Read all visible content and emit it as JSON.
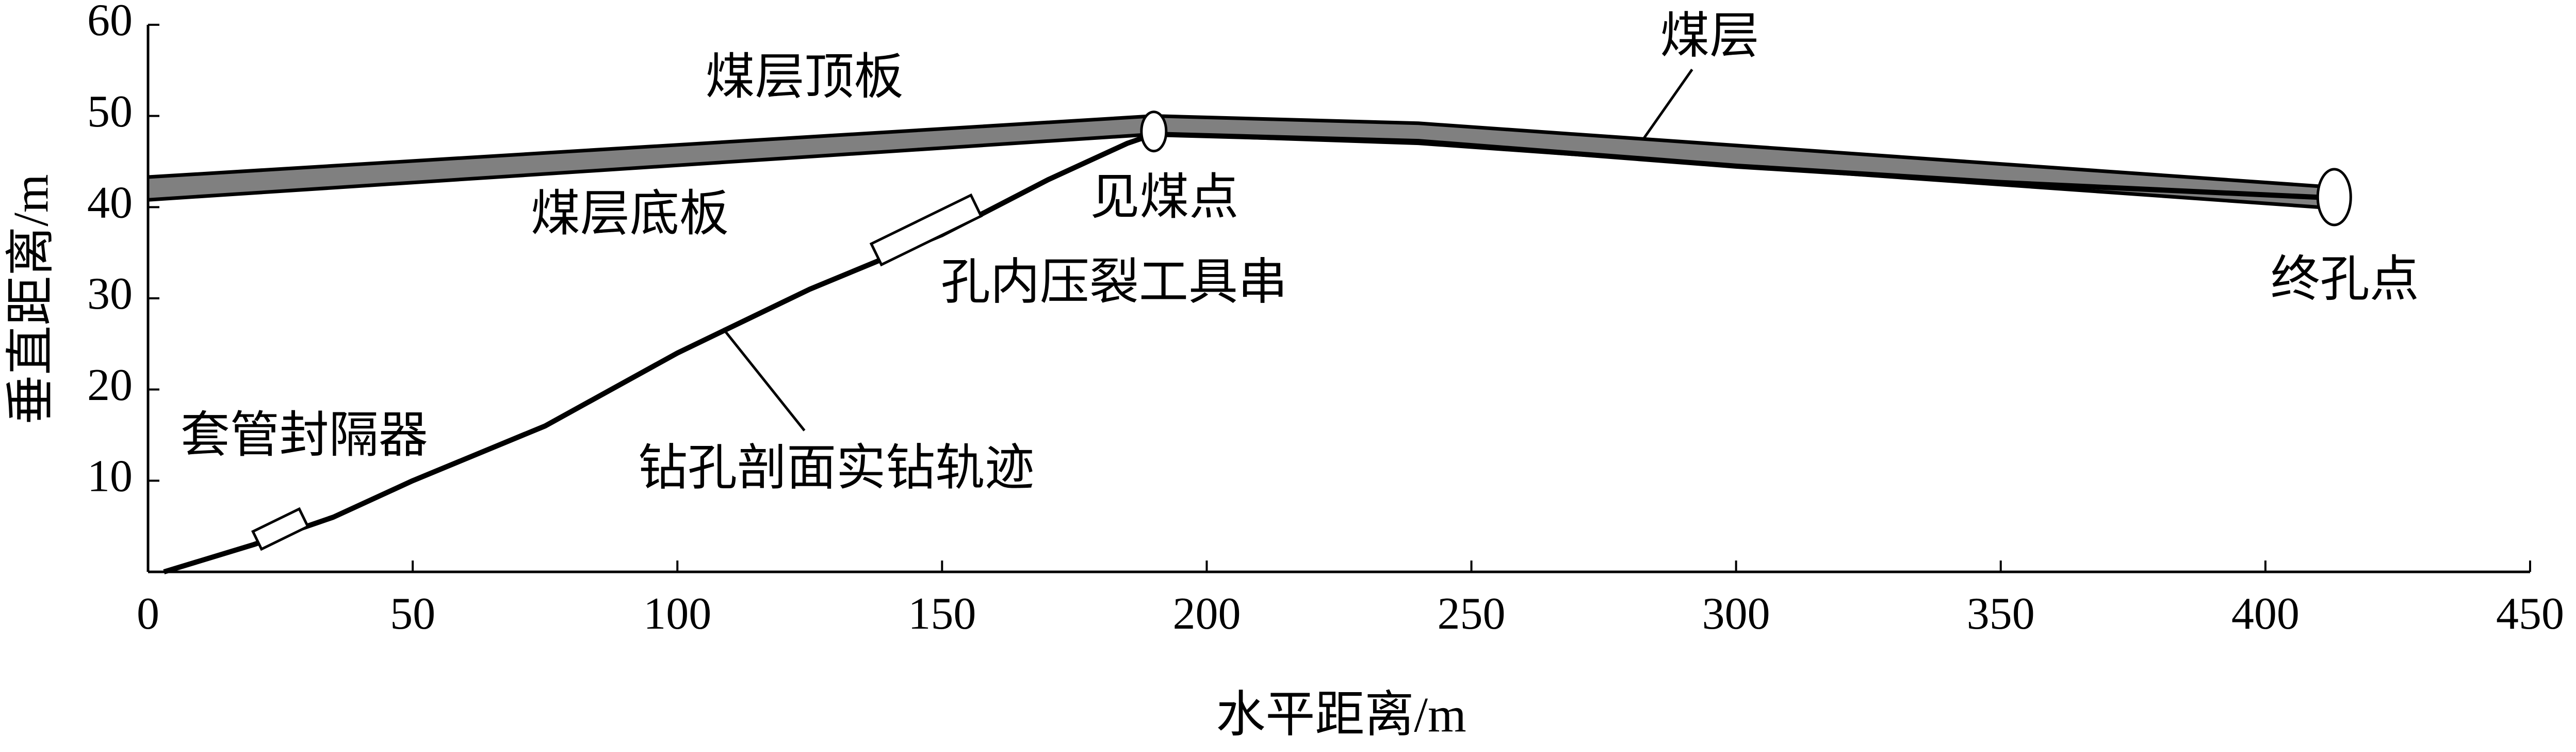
{
  "chart_data": {
    "type": "line",
    "xlabel": "水平距离/m",
    "ylabel": "垂直距离/m",
    "xlim": [
      0,
      450
    ],
    "xticks": [
      0,
      50,
      100,
      150,
      200,
      250,
      300,
      350,
      400,
      450
    ],
    "ylim": [
      0,
      60
    ],
    "yticks": [
      10,
      20,
      30,
      40,
      50,
      60
    ],
    "grid": false,
    "seam_fill": "#808080",
    "series": [
      {
        "name": "煤层顶板",
        "color": "#000000",
        "x": [
          0,
          190,
          240,
          410
        ],
        "values": [
          43.3,
          50,
          49.2,
          42.3
        ]
      },
      {
        "name": "煤层底板",
        "color": "#000000",
        "x": [
          0,
          190,
          240,
          410
        ],
        "values": [
          40.8,
          48,
          47,
          40
        ]
      },
      {
        "name": "钻孔剖面实钻轨迹",
        "color": "#000000",
        "x": [
          3,
          20,
          35,
          50,
          75,
          100,
          125,
          150,
          170,
          185,
          190,
          240,
          300,
          350,
          413
        ],
        "values": [
          0,
          3,
          6,
          10,
          16,
          24,
          31,
          37,
          43,
          47,
          48,
          47.2,
          44.5,
          42.7,
          41
        ]
      }
    ],
    "annotations": [
      "煤层",
      "见煤点",
      "孔内压裂工具串",
      "终孔点",
      "套管封隔器"
    ]
  }
}
